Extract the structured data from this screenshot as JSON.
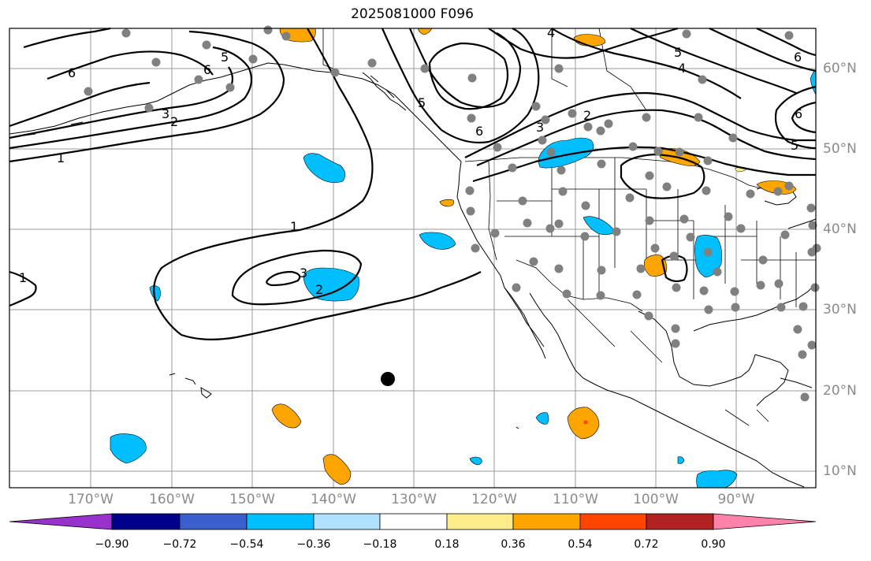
{
  "title": "2025081000 F096",
  "lat_labels": [
    "60°N",
    "50°N",
    "40°N",
    "30°N",
    "20°N",
    "10°N"
  ],
  "lon_labels": [
    "170°W",
    "160°W",
    "150°W",
    "140°W",
    "130°W",
    "120°W",
    "110°W",
    "100°W",
    "90°W"
  ],
  "colorbar": {
    "ticks": [
      "−0.90",
      "−0.72",
      "−0.54",
      "−0.36",
      "−0.18",
      "0.18",
      "0.36",
      "0.54",
      "0.72",
      "0.90"
    ],
    "colors": [
      "#9932cc",
      "#00008b",
      "#3a5fcd",
      "#00bfff",
      "#b0e2ff",
      "#ffffff",
      "#ffec8b",
      "#ffa500",
      "#ff4500",
      "#b22222",
      "#ff82ab"
    ]
  },
  "contour_labels": [
    "6",
    "5",
    "6",
    "3",
    "2",
    "1",
    "1",
    "2",
    "3",
    "1",
    "4",
    "5",
    "6",
    "3",
    "2",
    "4",
    "5",
    "6",
    "5",
    "6"
  ],
  "colors": {
    "grid": "#9a9a9a",
    "station": "#808080",
    "contour": "#000000",
    "negative_fill": "#00bfff",
    "positive_fill": "#ffa500",
    "strong_positive": "#ff4500",
    "weak_positive": "#ffec8b"
  }
}
